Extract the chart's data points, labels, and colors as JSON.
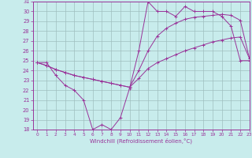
{
  "xlabel": "Windchill (Refroidissement éolien,°C)",
  "xlim": [
    -0.5,
    23
  ],
  "ylim": [
    18,
    31
  ],
  "xticks": [
    0,
    1,
    2,
    3,
    4,
    5,
    6,
    7,
    8,
    9,
    10,
    11,
    12,
    13,
    14,
    15,
    16,
    17,
    18,
    19,
    20,
    21,
    22,
    23
  ],
  "yticks": [
    18,
    19,
    20,
    21,
    22,
    23,
    24,
    25,
    26,
    27,
    28,
    29,
    30,
    31
  ],
  "bg_color": "#c8ecec",
  "line_color": "#993399",
  "grid_color": "#9fbfbf",
  "line1_x": [
    0,
    1,
    2,
    3,
    4,
    5,
    6,
    7,
    8,
    9,
    10,
    11,
    12,
    13,
    14,
    15,
    16,
    17,
    18,
    19,
    20,
    21,
    22,
    23
  ],
  "line1_y": [
    24.8,
    24.8,
    23.5,
    22.5,
    22.0,
    21.0,
    18.0,
    18.5,
    18.0,
    19.2,
    22.2,
    26.0,
    31.0,
    30.0,
    30.0,
    29.5,
    30.5,
    30.0,
    30.0,
    30.0,
    29.5,
    28.5,
    25.0,
    25.0
  ],
  "line2_x": [
    0,
    1,
    2,
    3,
    4,
    5,
    6,
    7,
    8,
    9,
    10,
    11,
    12,
    13,
    14,
    15,
    16,
    17,
    18,
    19,
    20,
    21,
    22,
    23
  ],
  "line2_y": [
    24.8,
    24.5,
    24.1,
    23.8,
    23.5,
    23.3,
    23.1,
    22.9,
    22.7,
    22.5,
    22.3,
    23.2,
    24.2,
    24.8,
    25.2,
    25.6,
    26.0,
    26.3,
    26.6,
    26.9,
    27.1,
    27.3,
    27.4,
    25.2
  ],
  "line3_x": [
    0,
    1,
    2,
    3,
    4,
    5,
    6,
    7,
    8,
    9,
    10,
    11,
    12,
    13,
    14,
    15,
    16,
    17,
    18,
    19,
    20,
    21,
    22,
    23
  ],
  "line3_y": [
    24.8,
    24.5,
    24.1,
    23.8,
    23.5,
    23.3,
    23.1,
    22.9,
    22.7,
    22.5,
    22.3,
    24.0,
    26.0,
    27.5,
    28.3,
    28.8,
    29.2,
    29.4,
    29.5,
    29.6,
    29.7,
    29.6,
    29.1,
    25.2
  ]
}
